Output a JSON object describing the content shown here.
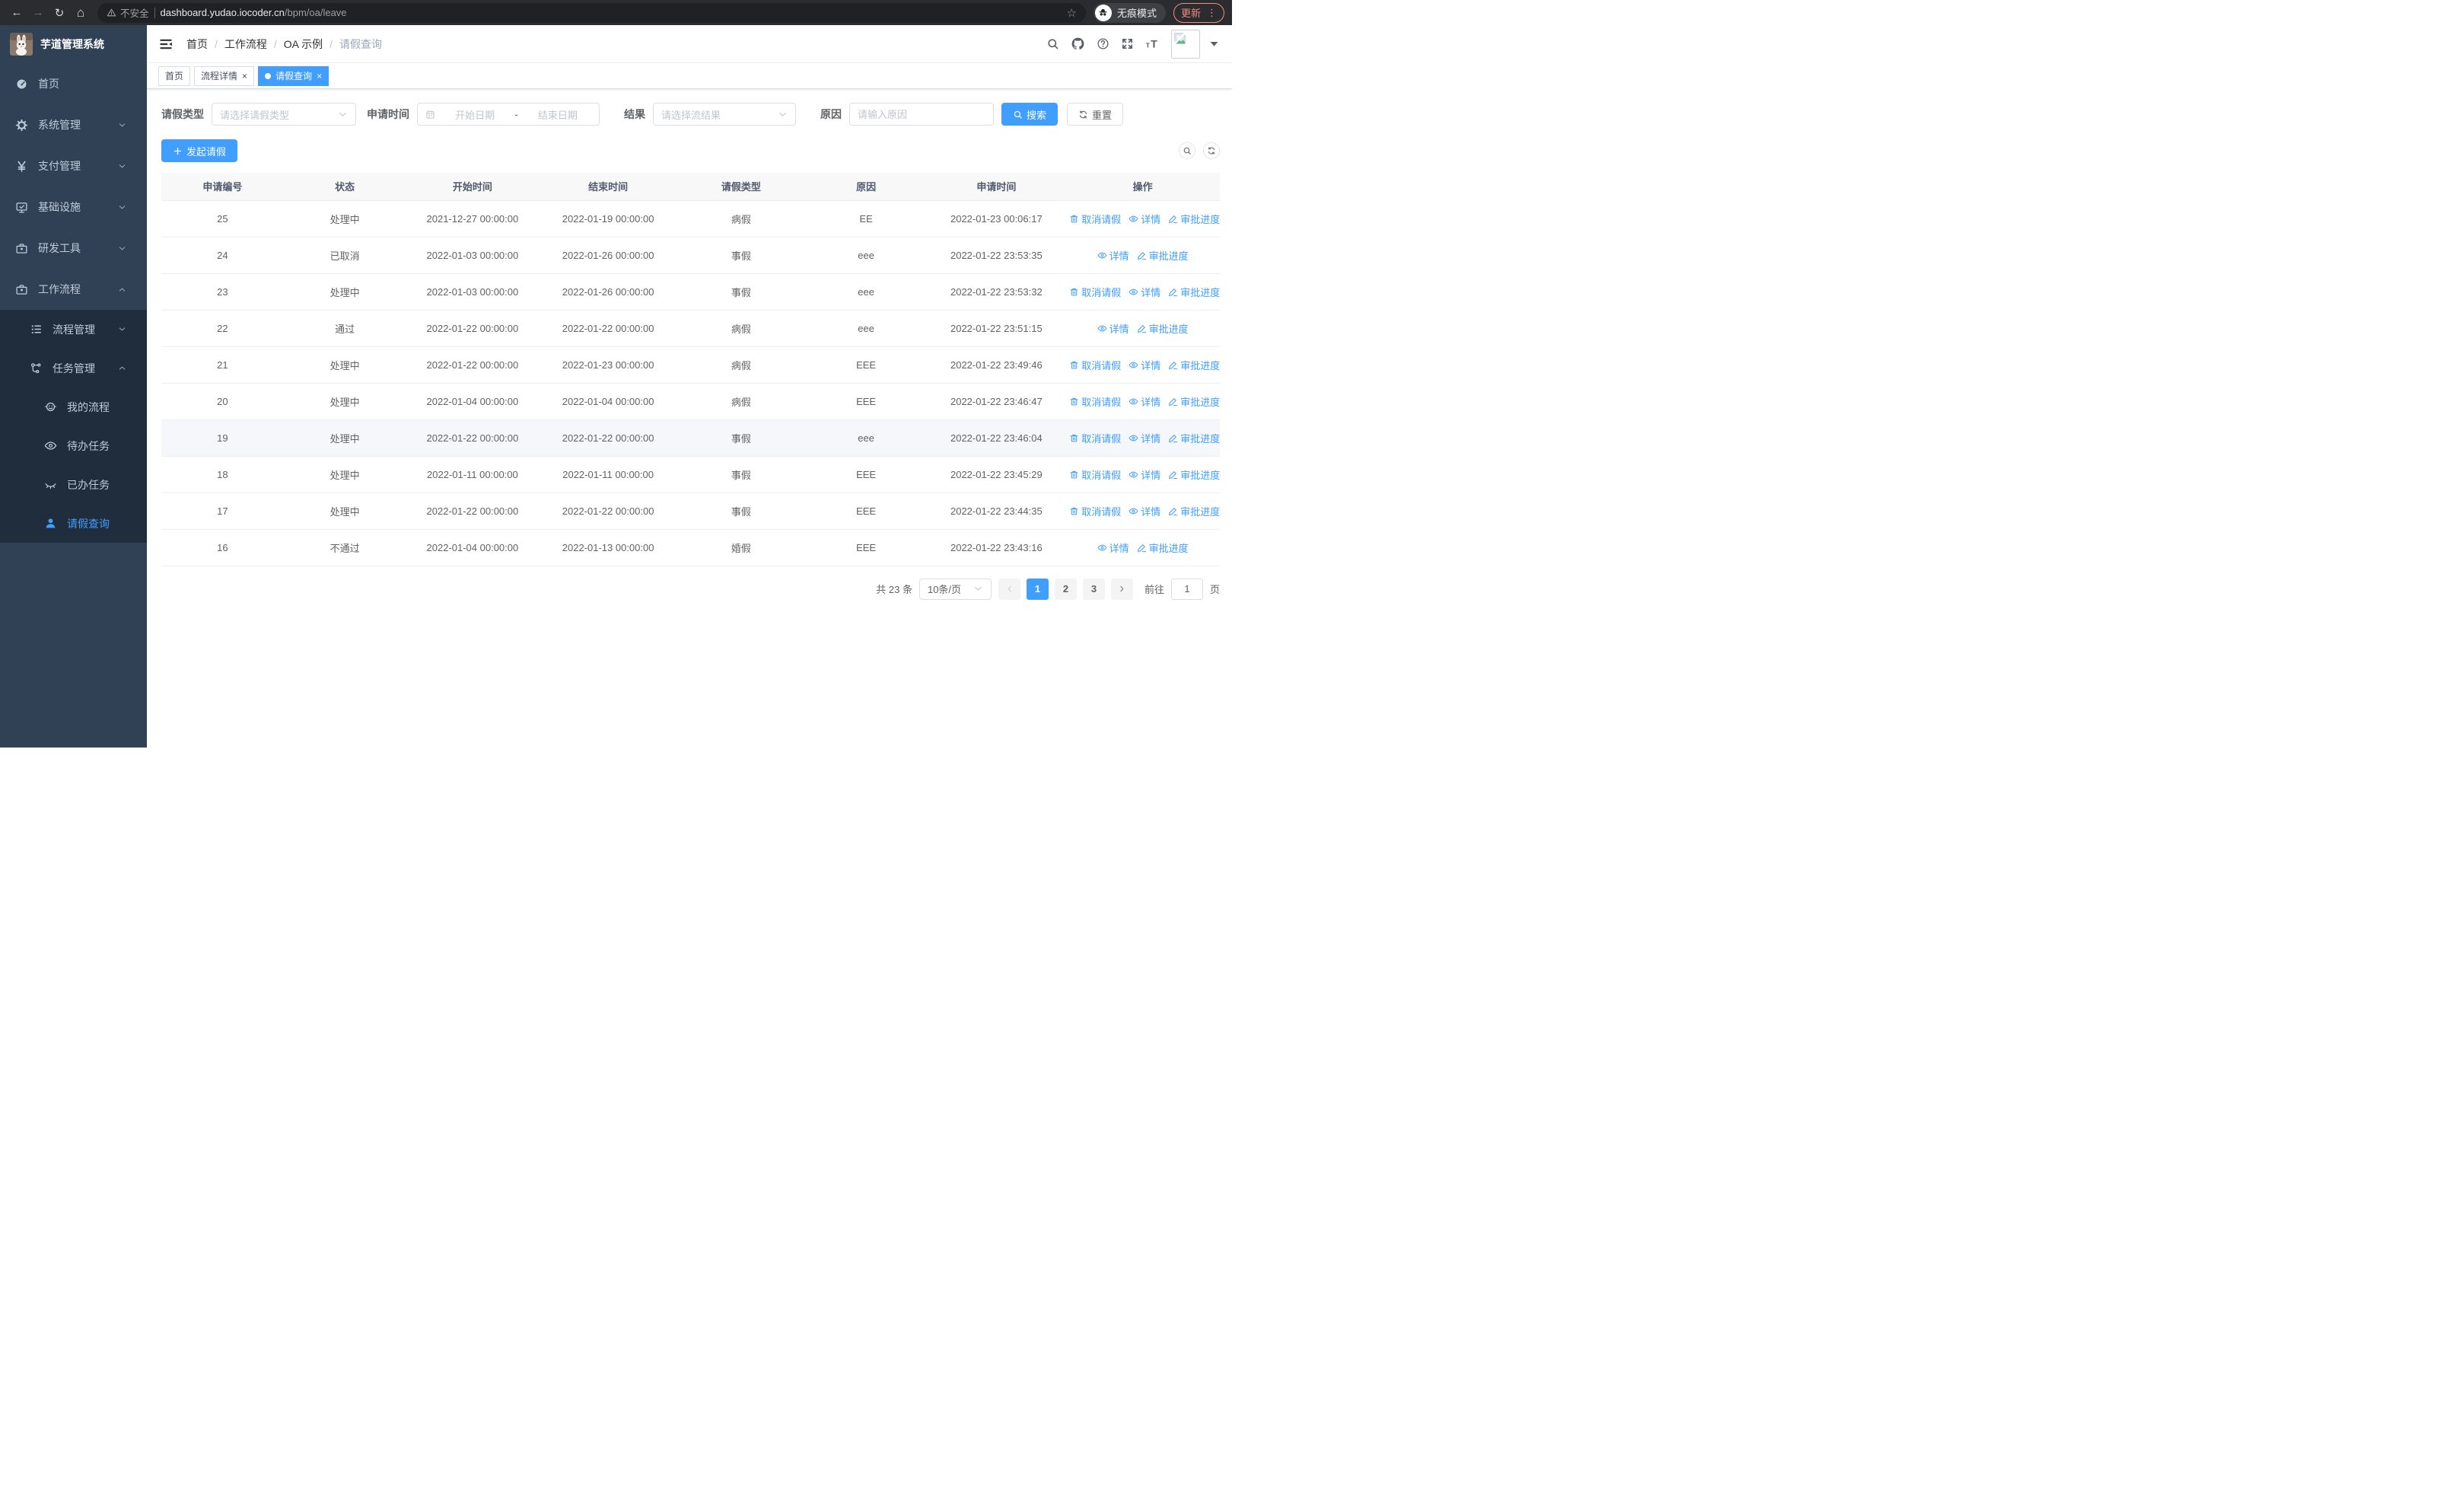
{
  "colors": {
    "primary": "#409eff",
    "sidebar_bg": "#304156",
    "submenu_bg": "#1f2d3d"
  },
  "browser": {
    "security_label": "不安全",
    "url_host": "dashboard.yudao.iocoder.cn",
    "url_path": "/bpm/oa/leave",
    "incognito_label": "无痕模式",
    "update_label": "更新"
  },
  "sidebar": {
    "logo_title": "芋道管理系统",
    "menu": [
      {
        "name": "sidebar-item-home",
        "label": "首页",
        "icon": "dashboard-icon",
        "level": 0
      },
      {
        "name": "sidebar-item-system",
        "label": "系统管理",
        "icon": "gear-icon",
        "level": 0,
        "chevron": "down"
      },
      {
        "name": "sidebar-item-payment",
        "label": "支付管理",
        "icon": "yen-icon",
        "level": 0,
        "chevron": "down"
      },
      {
        "name": "sidebar-item-infra",
        "label": "基础设施",
        "icon": "monitor-icon",
        "level": 0,
        "chevron": "down"
      },
      {
        "name": "sidebar-item-devtools",
        "label": "研发工具",
        "icon": "toolbox-icon",
        "level": 0,
        "chevron": "down"
      },
      {
        "name": "sidebar-item-workflow",
        "label": "工作流程",
        "icon": "toolbox-icon",
        "level": 0,
        "chevron": "up"
      },
      {
        "name": "sidebar-item-process-mgmt",
        "label": "流程管理",
        "icon": "list-icon",
        "level": 1,
        "submenu": true,
        "chevron": "down"
      },
      {
        "name": "sidebar-item-task-mgmt",
        "label": "任务管理",
        "icon": "flow-icon",
        "level": 1,
        "submenu": true,
        "chevron": "up"
      },
      {
        "name": "sidebar-item-my-processes",
        "label": "我的流程",
        "icon": "face-icon",
        "level": 2,
        "submenu": true
      },
      {
        "name": "sidebar-item-todo-tasks",
        "label": "待办任务",
        "icon": "eye-icon",
        "level": 2,
        "submenu": true
      },
      {
        "name": "sidebar-item-done-tasks",
        "label": "已办任务",
        "icon": "eye-closed-icon",
        "level": 2,
        "submenu": true
      },
      {
        "name": "sidebar-item-leave-query",
        "label": "请假查询",
        "icon": "user-icon",
        "level": 2,
        "submenu": true,
        "active": true
      }
    ]
  },
  "navbar": {
    "breadcrumb": [
      {
        "name": "breadcrumb-home",
        "label": "首页"
      },
      {
        "name": "breadcrumb-workflow",
        "label": "工作流程"
      },
      {
        "name": "breadcrumb-oa-example",
        "label": "OA 示例"
      },
      {
        "name": "breadcrumb-leave-query",
        "label": "请假查询",
        "current": true
      }
    ]
  },
  "tags": [
    {
      "name": "tab-home",
      "label": "首页",
      "closable": false,
      "active": false
    },
    {
      "name": "tab-process-detail",
      "label": "流程详情",
      "closable": true,
      "active": false
    },
    {
      "name": "tab-leave-query",
      "label": "请假查询",
      "closable": true,
      "active": true
    }
  ],
  "filters": {
    "leave_type": {
      "label": "请假类型",
      "placeholder": "请选择请假类型"
    },
    "apply_time": {
      "label": "申请时间",
      "start_placeholder": "开始日期",
      "separator": "-",
      "end_placeholder": "结束日期"
    },
    "result": {
      "label": "结果",
      "placeholder": "请选择流结果"
    },
    "reason": {
      "label": "原因",
      "placeholder": "请输入原因"
    },
    "search_label": "搜索",
    "reset_label": "重置"
  },
  "toolbar": {
    "create_label": "发起请假"
  },
  "table": {
    "columns": [
      {
        "key": "id",
        "label": "申请编号"
      },
      {
        "key": "status",
        "label": "状态"
      },
      {
        "key": "start",
        "label": "开始时间"
      },
      {
        "key": "end",
        "label": "结束时间"
      },
      {
        "key": "type",
        "label": "请假类型"
      },
      {
        "key": "reason",
        "label": "原因"
      },
      {
        "key": "apply",
        "label": "申请时间"
      },
      {
        "key": "actions",
        "label": "操作"
      }
    ],
    "action_defs": {
      "cancel": {
        "name": "cancel-leave-link",
        "label": "取消请假",
        "icon": "trash-icon"
      },
      "detail": {
        "name": "detail-link",
        "label": "详情",
        "icon": "eye-icon"
      },
      "progress": {
        "name": "progress-link",
        "label": "审批进度",
        "icon": "edit-icon"
      }
    },
    "rows": [
      {
        "id": "25",
        "status": "处理中",
        "start": "2021-12-27 00:00:00",
        "end": "2022-01-19 00:00:00",
        "type": "病假",
        "reason": "EE",
        "apply": "2022-01-23 00:06:17",
        "actions": [
          "cancel",
          "detail",
          "progress"
        ]
      },
      {
        "id": "24",
        "status": "已取消",
        "start": "2022-01-03 00:00:00",
        "end": "2022-01-26 00:00:00",
        "type": "事假",
        "reason": "eee",
        "apply": "2022-01-22 23:53:35",
        "actions": [
          "detail",
          "progress"
        ]
      },
      {
        "id": "23",
        "status": "处理中",
        "start": "2022-01-03 00:00:00",
        "end": "2022-01-26 00:00:00",
        "type": "事假",
        "reason": "eee",
        "apply": "2022-01-22 23:53:32",
        "actions": [
          "cancel",
          "detail",
          "progress"
        ]
      },
      {
        "id": "22",
        "status": "通过",
        "start": "2022-01-22 00:00:00",
        "end": "2022-01-22 00:00:00",
        "type": "病假",
        "reason": "eee",
        "apply": "2022-01-22 23:51:15",
        "actions": [
          "detail",
          "progress"
        ]
      },
      {
        "id": "21",
        "status": "处理中",
        "start": "2022-01-22 00:00:00",
        "end": "2022-01-23 00:00:00",
        "type": "病假",
        "reason": "EEE",
        "apply": "2022-01-22 23:49:46",
        "actions": [
          "cancel",
          "detail",
          "progress"
        ]
      },
      {
        "id": "20",
        "status": "处理中",
        "start": "2022-01-04 00:00:00",
        "end": "2022-01-04 00:00:00",
        "type": "病假",
        "reason": "EEE",
        "apply": "2022-01-22 23:46:47",
        "actions": [
          "cancel",
          "detail",
          "progress"
        ]
      },
      {
        "id": "19",
        "status": "处理中",
        "start": "2022-01-22 00:00:00",
        "end": "2022-01-22 00:00:00",
        "type": "事假",
        "reason": "eee",
        "apply": "2022-01-22 23:46:04",
        "actions": [
          "cancel",
          "detail",
          "progress"
        ],
        "hover": true
      },
      {
        "id": "18",
        "status": "处理中",
        "start": "2022-01-11 00:00:00",
        "end": "2022-01-11 00:00:00",
        "type": "事假",
        "reason": "EEE",
        "apply": "2022-01-22 23:45:29",
        "actions": [
          "cancel",
          "detail",
          "progress"
        ]
      },
      {
        "id": "17",
        "status": "处理中",
        "start": "2022-01-22 00:00:00",
        "end": "2022-01-22 00:00:00",
        "type": "事假",
        "reason": "EEE",
        "apply": "2022-01-22 23:44:35",
        "actions": [
          "cancel",
          "detail",
          "progress"
        ]
      },
      {
        "id": "16",
        "status": "不通过",
        "start": "2022-01-04 00:00:00",
        "end": "2022-01-13 00:00:00",
        "type": "婚假",
        "reason": "EEE",
        "apply": "2022-01-22 23:43:16",
        "actions": [
          "detail",
          "progress"
        ]
      }
    ]
  },
  "pagination": {
    "total_label": "共 23 条",
    "page_size": "10条/页",
    "pages": [
      "1",
      "2",
      "3"
    ],
    "active_page": "1",
    "goto_label": "前往",
    "goto_value": "1",
    "page_unit": "页"
  }
}
